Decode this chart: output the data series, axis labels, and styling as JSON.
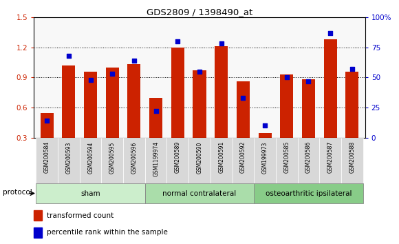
{
  "title": "GDS2809 / 1398490_at",
  "samples": [
    "GSM200584",
    "GSM200593",
    "GSM200594",
    "GSM200595",
    "GSM200596",
    "GSM1199974",
    "GSM200589",
    "GSM200590",
    "GSM200591",
    "GSM200592",
    "GSM199973",
    "GSM200585",
    "GSM200586",
    "GSM200587",
    "GSM200588"
  ],
  "transformed_count": [
    0.55,
    1.02,
    0.96,
    1.0,
    1.03,
    0.7,
    1.2,
    0.97,
    1.21,
    0.86,
    0.35,
    0.93,
    0.88,
    1.28,
    0.96
  ],
  "percentile_rank": [
    14,
    68,
    48,
    53,
    64,
    22,
    80,
    55,
    78,
    33,
    10,
    50,
    47,
    87,
    57
  ],
  "groups": [
    {
      "label": "sham",
      "start": 0,
      "end": 5
    },
    {
      "label": "normal contralateral",
      "start": 5,
      "end": 10
    },
    {
      "label": "osteoarthritic ipsilateral",
      "start": 10,
      "end": 15
    }
  ],
  "group_colors": [
    "#cceecc",
    "#aaddaa",
    "#88cc88"
  ],
  "ylim_left": [
    0.3,
    1.5
  ],
  "ylim_right": [
    0,
    100
  ],
  "yticks_left": [
    0.3,
    0.6,
    0.9,
    1.2,
    1.5
  ],
  "yticks_right": [
    0,
    25,
    50,
    75,
    100
  ],
  "bar_color": "#cc2200",
  "dot_color": "#0000cc",
  "left_axis_color": "#cc2200",
  "right_axis_color": "#0000cc",
  "protocol_label": "protocol",
  "legend_red": "transformed count",
  "legend_blue": "percentile rank within the sample",
  "bar_bottom": 0.3
}
